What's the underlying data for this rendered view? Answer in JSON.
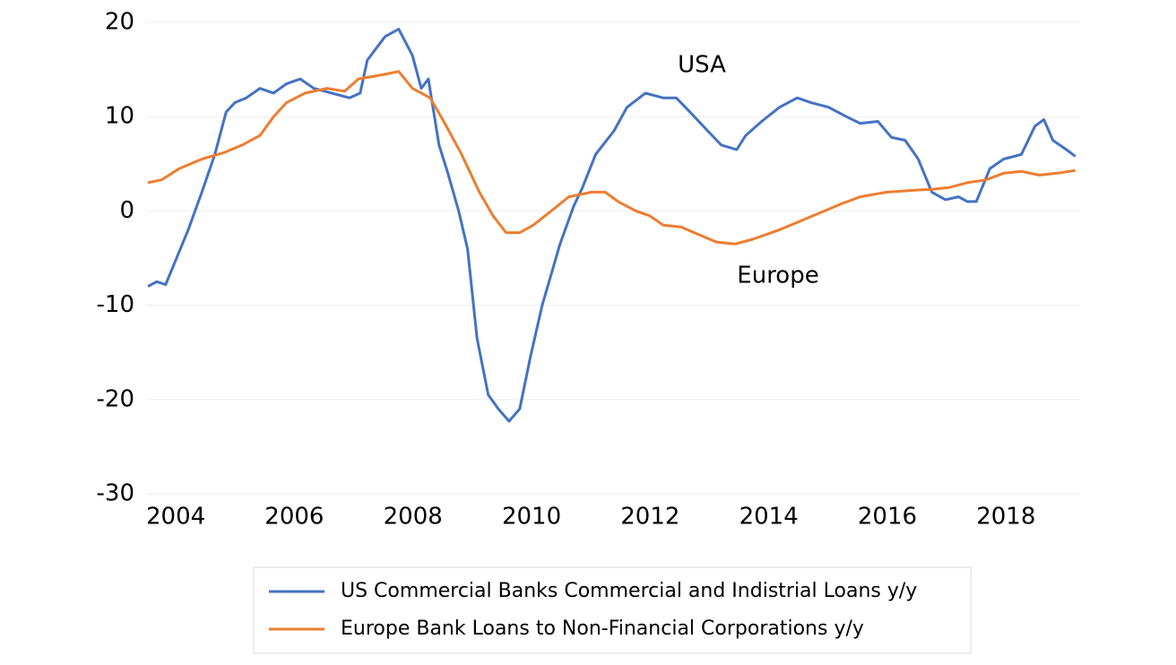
{
  "chart_data": {
    "type": "line",
    "annotations": [
      "USA",
      "Europe"
    ],
    "series": [
      {
        "name": "US Commercial Banks Commercial and Indistrial Loans y/y",
        "color": "#4472c4",
        "x": [
          2003.53,
          2003.68,
          2003.83,
          2003.98,
          2004.21,
          2004.44,
          2004.66,
          2004.85,
          2005.0,
          2005.19,
          2005.42,
          2005.65,
          2005.87,
          2006.1,
          2006.33,
          2006.63,
          2006.93,
          2007.11,
          2007.23,
          2007.53,
          2007.76,
          2007.99,
          2008.14,
          2008.26,
          2008.44,
          2008.59,
          2008.77,
          2008.92,
          2009.08,
          2009.27,
          2009.44,
          2009.62,
          2009.8,
          2009.98,
          2010.18,
          2010.48,
          2010.71,
          2010.86,
          2011.08,
          2011.39,
          2011.61,
          2011.92,
          2012.22,
          2012.44,
          2012.67,
          2012.97,
          2013.2,
          2013.46,
          2013.61,
          2013.88,
          2014.18,
          2014.48,
          2014.71,
          2015.01,
          2015.31,
          2015.54,
          2015.84,
          2016.07,
          2016.3,
          2016.52,
          2016.75,
          2016.98,
          2017.2,
          2017.35,
          2017.5,
          2017.73,
          2017.96,
          2018.26,
          2018.49,
          2018.64,
          2018.79,
          2019.02,
          2019.17
        ],
        "values": [
          -8,
          -7.5,
          -7.8,
          -5.5,
          -2,
          2,
          6,
          10.5,
          11.5,
          12,
          13,
          12.5,
          13.5,
          14,
          13,
          12.5,
          12,
          12.5,
          16,
          18.5,
          19.3,
          16.5,
          13,
          14,
          7,
          4,
          0,
          -4,
          -13.5,
          -19.5,
          -21,
          -22.3,
          -21,
          -15.5,
          -10,
          -3.5,
          0.5,
          2.5,
          6,
          8.5,
          11,
          12.5,
          12,
          12,
          10.5,
          8.5,
          7,
          6.5,
          8,
          9.5,
          11,
          12,
          11.5,
          11,
          10,
          9.3,
          9.5,
          7.8,
          7.5,
          5.5,
          2,
          1.2,
          1.5,
          1,
          1,
          4.5,
          5.5,
          6,
          9,
          9.7,
          7.5,
          6.5,
          5.8
        ]
      },
      {
        "name": "Europe Bank Loans to Non-Financial Corporations y/y",
        "color": "#ed7d31",
        "x": [
          2003.53,
          2003.76,
          2004.06,
          2004.44,
          2004.82,
          2005.12,
          2005.42,
          2005.65,
          2005.87,
          2006.18,
          2006.55,
          2006.85,
          2007.08,
          2007.53,
          2007.76,
          2007.99,
          2008.29,
          2008.52,
          2008.82,
          2009.12,
          2009.35,
          2009.57,
          2009.8,
          2010.03,
          2010.33,
          2010.63,
          2011.01,
          2011.24,
          2011.46,
          2011.76,
          2011.99,
          2012.22,
          2012.52,
          2012.82,
          2013.12,
          2013.43,
          2013.73,
          2014.18,
          2014.56,
          2014.94,
          2015.24,
          2015.54,
          2015.99,
          2016.45,
          2016.75,
          2017.05,
          2017.35,
          2017.66,
          2017.96,
          2018.26,
          2018.56,
          2018.86,
          2019.17
        ],
        "values": [
          3,
          3.3,
          4.5,
          5.5,
          6.2,
          7,
          8,
          10,
          11.5,
          12.5,
          13,
          12.7,
          14,
          14.5,
          14.8,
          13,
          12,
          9.5,
          6,
          2,
          -0.5,
          -2.3,
          -2.3,
          -1.5,
          0,
          1.5,
          2,
          2,
          1,
          0,
          -0.5,
          -1.5,
          -1.7,
          -2.5,
          -3.3,
          -3.5,
          -3,
          -2,
          -1,
          0,
          0.8,
          1.5,
          2,
          2.2,
          2.3,
          2.5,
          3,
          3.3,
          4,
          4.2,
          3.8,
          4,
          4.3
        ]
      }
    ],
    "xlim": [
      2003.5,
      2019.25
    ],
    "xticks": [
      2004,
      2006,
      2008,
      2010,
      2012,
      2014,
      2016,
      2018
    ],
    "ylim": [
      -30,
      20
    ],
    "yticks": [
      -30,
      -20,
      -10,
      0,
      10,
      20
    ],
    "grid": true
  }
}
